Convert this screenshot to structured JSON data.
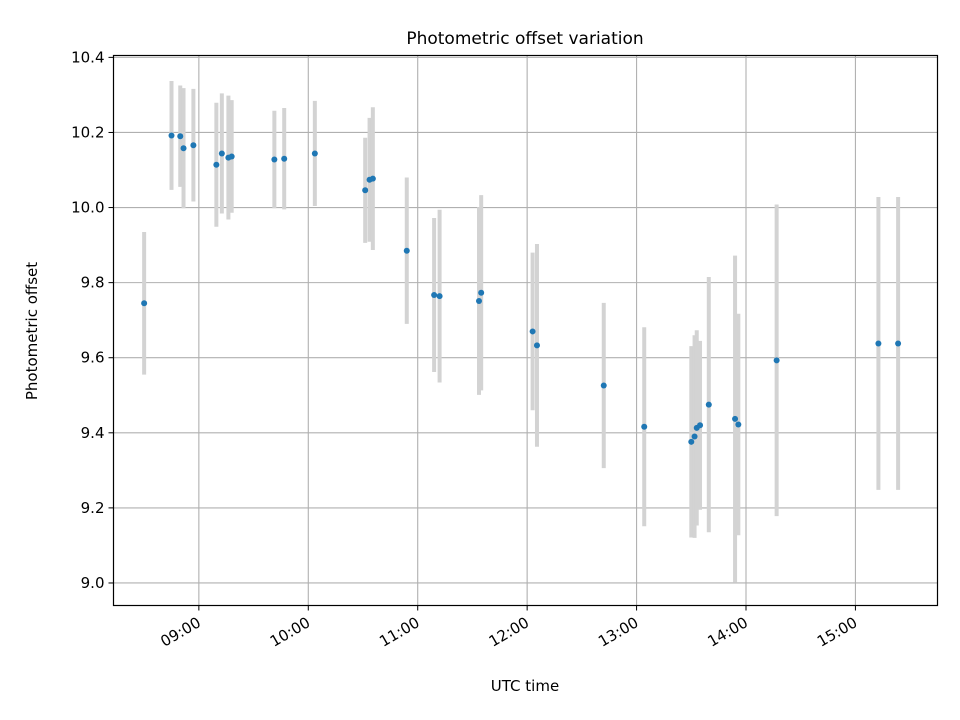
{
  "chart_data": {
    "type": "scatter",
    "title": "Photometric offset variation",
    "xlabel": "UTC time",
    "ylabel": "Photometric offset",
    "x_unit": "hours (UTC)",
    "xlim": [
      8.22,
      15.75
    ],
    "ylim": [
      8.94,
      10.405
    ],
    "grid": true,
    "x_ticks": [
      {
        "value": 9,
        "label": "09:00"
      },
      {
        "value": 10,
        "label": "10:00"
      },
      {
        "value": 11,
        "label": "11:00"
      },
      {
        "value": 12,
        "label": "12:00"
      },
      {
        "value": 13,
        "label": "13:00"
      },
      {
        "value": 14,
        "label": "14:00"
      },
      {
        "value": 15,
        "label": "15:00"
      }
    ],
    "y_ticks": [
      {
        "value": 9.0,
        "label": "9.0"
      },
      {
        "value": 9.2,
        "label": "9.2"
      },
      {
        "value": 9.4,
        "label": "9.4"
      },
      {
        "value": 9.6,
        "label": "9.6"
      },
      {
        "value": 9.8,
        "label": "9.8"
      },
      {
        "value": 10.0,
        "label": "10.0"
      },
      {
        "value": 10.2,
        "label": "10.2"
      },
      {
        "value": 10.4,
        "label": "10.4"
      }
    ],
    "colors": {
      "point": "#1f77b4",
      "errorbar": "#d3d3d3",
      "grid": "#b0b0b0",
      "axes": "#000000"
    },
    "points": [
      {
        "x": 8.5,
        "y": 9.745,
        "err": 0.19
      },
      {
        "x": 8.75,
        "y": 10.192,
        "err": 0.145
      },
      {
        "x": 8.83,
        "y": 10.19,
        "err": 0.135
      },
      {
        "x": 8.86,
        "y": 10.158,
        "err": 0.16
      },
      {
        "x": 8.95,
        "y": 10.166,
        "err": 0.15
      },
      {
        "x": 9.16,
        "y": 10.114,
        "err": 0.165
      },
      {
        "x": 9.21,
        "y": 10.144,
        "err": 0.16
      },
      {
        "x": 9.27,
        "y": 10.133,
        "err": 0.165
      },
      {
        "x": 9.3,
        "y": 10.136,
        "err": 0.15
      },
      {
        "x": 9.69,
        "y": 10.128,
        "err": 0.13
      },
      {
        "x": 9.78,
        "y": 10.13,
        "err": 0.135
      },
      {
        "x": 10.06,
        "y": 10.144,
        "err": 0.14
      },
      {
        "x": 10.52,
        "y": 10.046,
        "err": 0.14
      },
      {
        "x": 10.56,
        "y": 10.074,
        "err": 0.165
      },
      {
        "x": 10.59,
        "y": 10.077,
        "err": 0.19
      },
      {
        "x": 10.9,
        "y": 9.885,
        "err": 0.195
      },
      {
        "x": 11.15,
        "y": 9.767,
        "err": 0.205
      },
      {
        "x": 11.2,
        "y": 9.764,
        "err": 0.23
      },
      {
        "x": 11.56,
        "y": 9.751,
        "err": 0.25
      },
      {
        "x": 11.58,
        "y": 9.773,
        "err": 0.26
      },
      {
        "x": 12.05,
        "y": 9.67,
        "err": 0.21
      },
      {
        "x": 12.09,
        "y": 9.633,
        "err": 0.27
      },
      {
        "x": 12.7,
        "y": 9.526,
        "err": 0.22
      },
      {
        "x": 13.07,
        "y": 9.416,
        "err": 0.265
      },
      {
        "x": 13.5,
        "y": 9.376,
        "err": 0.255
      },
      {
        "x": 13.53,
        "y": 9.39,
        "err": 0.27
      },
      {
        "x": 13.55,
        "y": 9.413,
        "err": 0.26
      },
      {
        "x": 13.58,
        "y": 9.42,
        "err": 0.225
      },
      {
        "x": 13.66,
        "y": 9.475,
        "err": 0.34
      },
      {
        "x": 13.9,
        "y": 9.437,
        "err": 0.435
      },
      {
        "x": 13.93,
        "y": 9.422,
        "err": 0.295
      },
      {
        "x": 14.28,
        "y": 9.593,
        "err": 0.415
      },
      {
        "x": 15.21,
        "y": 9.638,
        "err": 0.39
      },
      {
        "x": 15.39,
        "y": 9.638,
        "err": 0.39
      }
    ]
  }
}
